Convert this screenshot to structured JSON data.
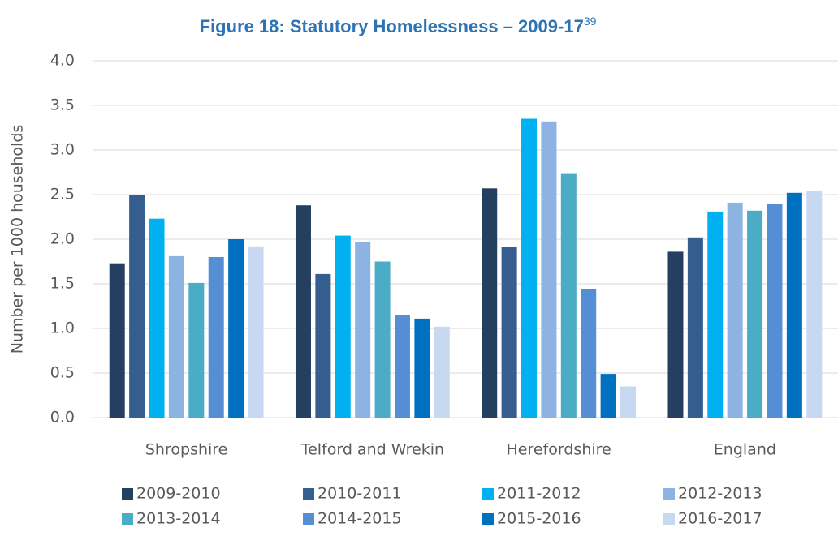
{
  "chart_data": {
    "type": "bar",
    "title": "Figure 18: Statutory Homelessness – 2009-17",
    "title_superscript": "39",
    "y_label": "Number per 1000 households",
    "categories": [
      "Shropshire",
      "Telford and Wrekin",
      "Herefordshire",
      "England"
    ],
    "series": [
      {
        "name": "2009-2010",
        "color": "#243F60",
        "values": [
          1.73,
          2.38,
          2.57,
          1.86
        ]
      },
      {
        "name": "2010-2011",
        "color": "#355E8E",
        "values": [
          2.5,
          1.61,
          1.91,
          2.02
        ]
      },
      {
        "name": "2011-2012",
        "color": "#00B0F0",
        "values": [
          2.23,
          2.04,
          3.35,
          2.31
        ]
      },
      {
        "name": "2012-2013",
        "color": "#8DB3E2",
        "values": [
          1.81,
          1.97,
          3.32,
          2.41
        ]
      },
      {
        "name": "2013-2014",
        "color": "#4BACC6",
        "values": [
          1.51,
          1.75,
          2.74,
          2.32
        ]
      },
      {
        "name": "2014-2015",
        "color": "#558ED5",
        "values": [
          1.8,
          1.15,
          1.44,
          2.4
        ]
      },
      {
        "name": "2015-2016",
        "color": "#0070C0",
        "values": [
          2.0,
          1.11,
          0.49,
          2.52
        ]
      },
      {
        "name": "2016-2017",
        "color": "#C6D9F1",
        "values": [
          1.92,
          1.02,
          0.35,
          2.54
        ]
      }
    ],
    "ylim": [
      0,
      4
    ],
    "yticks": [
      {
        "value": 0,
        "label": "0.0"
      },
      0.5,
      {
        "value": 1,
        "label": "1.0"
      },
      1.5,
      {
        "value": 2,
        "label": "2.0"
      },
      2.5,
      {
        "value": 3,
        "label": "3.0"
      },
      3.5,
      {
        "value": 4,
        "label": "4.0"
      }
    ],
    "grid": true,
    "legend": "bottom"
  }
}
